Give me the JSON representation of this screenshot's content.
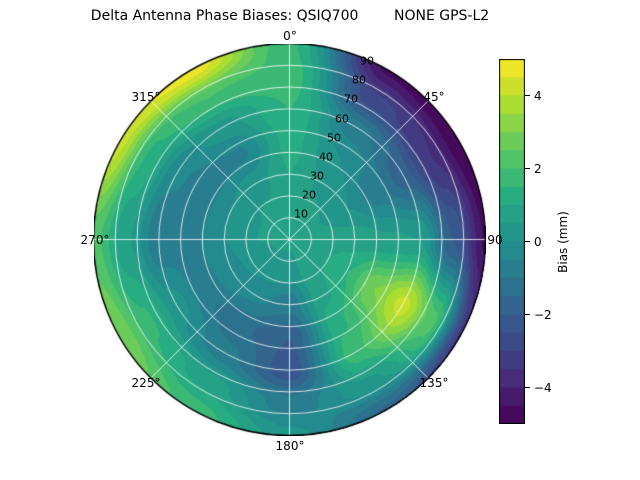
{
  "title": "Delta Antenna Phase Biases: QSIQ700        NONE GPS-L2",
  "chart_data": {
    "type": "heatmap",
    "projection": "polar",
    "title": "Delta Antenna Phase Biases: QSIQ700  NONE GPS-L2",
    "colormap": "viridis",
    "contour_step_mm": 0.5,
    "angular_ticks": [
      "0°",
      "45°",
      "90",
      "135°",
      "180°",
      "225°",
      "270°",
      "315°"
    ],
    "radial_ticks": [
      10,
      20,
      30,
      40,
      50,
      60,
      70,
      80,
      90
    ],
    "radial_axis": "zenith angle (deg), 0 at center to 90 at edge",
    "azimuth_deg": [
      0,
      30,
      60,
      90,
      120,
      150,
      180,
      210,
      240,
      270,
      300,
      330
    ],
    "zenith_deg": [
      0,
      15,
      30,
      45,
      60,
      75,
      90
    ],
    "bias_mm": [
      [
        0.6,
        0.8,
        1.0,
        1.2,
        1.5,
        1.8,
        1.6
      ],
      [
        0.6,
        0.6,
        0.4,
        0.0,
        -0.8,
        -2.8,
        -4.6
      ],
      [
        0.6,
        0.5,
        0.0,
        -0.8,
        -1.8,
        -3.5,
        -5.0
      ],
      [
        0.6,
        0.7,
        0.8,
        0.6,
        0.5,
        -2.0,
        -4.6
      ],
      [
        0.6,
        0.9,
        1.5,
        3.0,
        4.2,
        2.2,
        -3.2
      ],
      [
        0.6,
        0.7,
        0.9,
        1.4,
        1.8,
        0.4,
        -1.6
      ],
      [
        0.6,
        0.2,
        -0.8,
        -2.0,
        -2.3,
        -0.8,
        0.2
      ],
      [
        0.6,
        0.3,
        -0.4,
        -1.4,
        -0.8,
        0.8,
        1.8
      ],
      [
        0.6,
        0.4,
        -0.2,
        -0.8,
        0.2,
        1.6,
        3.0
      ],
      [
        0.6,
        0.5,
        0.0,
        -0.6,
        -0.9,
        0.6,
        2.2
      ],
      [
        0.6,
        0.5,
        0.0,
        -0.8,
        -0.4,
        1.4,
        4.2
      ],
      [
        0.6,
        0.6,
        0.3,
        -0.6,
        0.3,
        2.0,
        4.8
      ]
    ],
    "colorbar": {
      "label": "Bias (mm)",
      "range": [
        -5,
        5
      ],
      "ticks": [
        4,
        2,
        0,
        -2,
        -4
      ],
      "tick_labels": [
        "4",
        "2",
        "0",
        "−2",
        "−4"
      ]
    }
  }
}
